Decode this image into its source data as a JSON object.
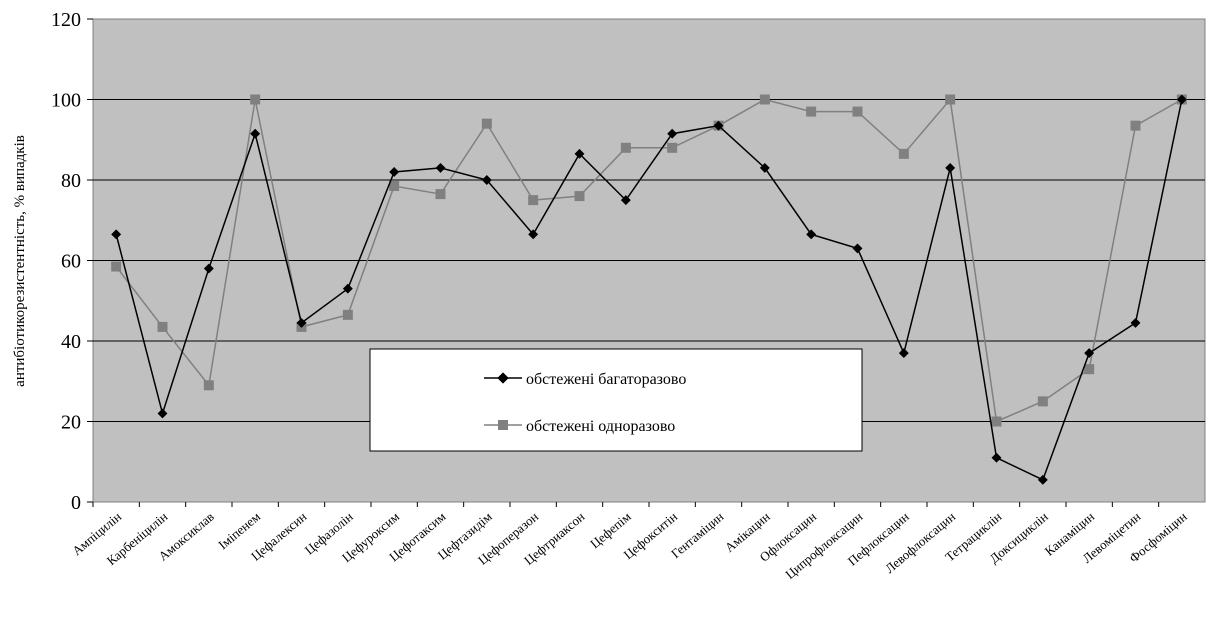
{
  "chart_data": {
    "type": "line",
    "title": "",
    "xlabel": "",
    "ylabel": "антибіотикорезистентність, % випадків",
    "ylim": [
      0,
      120
    ],
    "yticks": [
      0,
      20,
      40,
      60,
      80,
      100,
      120
    ],
    "grid": true,
    "legend_position": "bottom-center",
    "plot_background": "#c0c0c0",
    "categories": [
      "Ампіцилін",
      "Карбеніцилін",
      "Амоксиклав",
      "Іміпенем",
      "Цефалексин",
      "Цефазолін",
      "Цефуроксим",
      "Цефотаксим",
      "Цефтазидім",
      "Цефоперазон",
      "Цефтриаксон",
      "Цефепім",
      "Цефокситін",
      "Гентаміцин",
      "Амікацин",
      "Офлоксацин",
      "Ципрофлоксацин",
      "Пефлоксацин",
      "Левофлоксацин",
      "Тетрациклін",
      "Доксициклін",
      "Канаміцин",
      "Левоміцетин",
      "Фосфоміцин"
    ],
    "series": [
      {
        "name": "обстежені багаторазово",
        "color": "#000000",
        "marker": "diamond",
        "values": [
          66.5,
          22,
          58,
          91.5,
          44.5,
          53,
          82,
          83,
          80,
          66.5,
          86.5,
          75,
          91.5,
          93.5,
          83,
          66.5,
          63,
          37,
          83,
          11,
          5.5,
          37,
          44.5,
          100
        ]
      },
      {
        "name": "обстежені одноразово",
        "color": "#808080",
        "marker": "square",
        "values": [
          58.5,
          43.5,
          29,
          100,
          43.5,
          46.5,
          78.5,
          76.5,
          94,
          75,
          76,
          88,
          88,
          93.5,
          100,
          97,
          97,
          86.5,
          100,
          20,
          25,
          33,
          93.5,
          100
        ]
      }
    ]
  }
}
